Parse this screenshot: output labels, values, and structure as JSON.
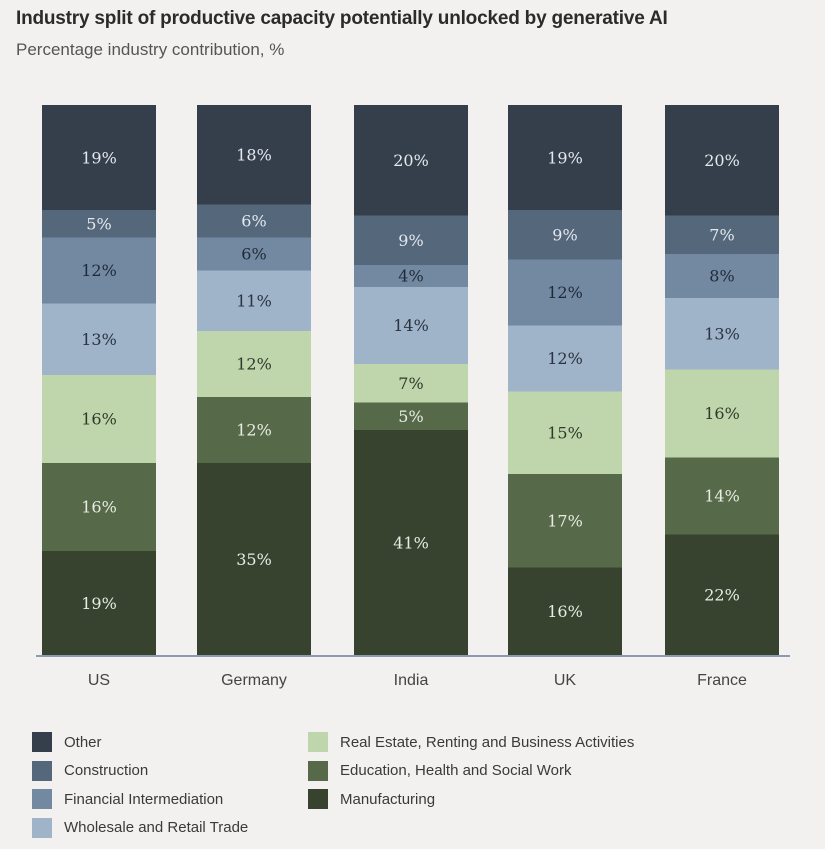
{
  "chart_data": {
    "type": "bar",
    "stacked": true,
    "title": "Industry split of productive capacity potentially unlocked by generative AI",
    "subtitle": "Percentage industry contribution, %",
    "xlabel": "",
    "ylabel": "",
    "ylim": [
      0,
      100
    ],
    "grid": false,
    "legend_position": "bottom",
    "categories": [
      "US",
      "Germany",
      "India",
      "UK",
      "France"
    ],
    "series": [
      {
        "name": "Manufacturing",
        "color": "#38432f",
        "label_color": "#e8ece4",
        "values": [
          19,
          35,
          41,
          16,
          22
        ]
      },
      {
        "name": "Education, Health and Social Work",
        "color": "#566a49",
        "label_color": "#e8ece4",
        "values": [
          16,
          12,
          5,
          17,
          14
        ]
      },
      {
        "name": "Real Estate, Renting and Business Activities",
        "color": "#bfd6ad",
        "label_color": "#2f3a2a",
        "values": [
          16,
          12,
          7,
          15,
          16
        ]
      },
      {
        "name": "Wholesale and Retail Trade",
        "color": "#9fb3c9",
        "label_color": "#2a3340",
        "values": [
          13,
          11,
          14,
          12,
          13
        ]
      },
      {
        "name": "Financial Intermediation",
        "color": "#7289a1",
        "label_color": "#1f2a38",
        "values": [
          12,
          6,
          4,
          12,
          8
        ]
      },
      {
        "name": "Construction",
        "color": "#55677a",
        "label_color": "#e4e9ef",
        "values": [
          5,
          6,
          9,
          9,
          7
        ]
      },
      {
        "name": "Other",
        "color": "#353f4c",
        "label_color": "#e4e9ef",
        "values": [
          19,
          18,
          20,
          19,
          20
        ]
      }
    ],
    "legend": {
      "columns": [
        [
          "Other",
          "Construction",
          "Financial Intermediation",
          "Wholesale and Retail Trade"
        ],
        [
          "Real Estate, Renting and Business Activities",
          "Education, Health and Social Work",
          "Manufacturing"
        ]
      ]
    },
    "value_suffix": "%"
  }
}
